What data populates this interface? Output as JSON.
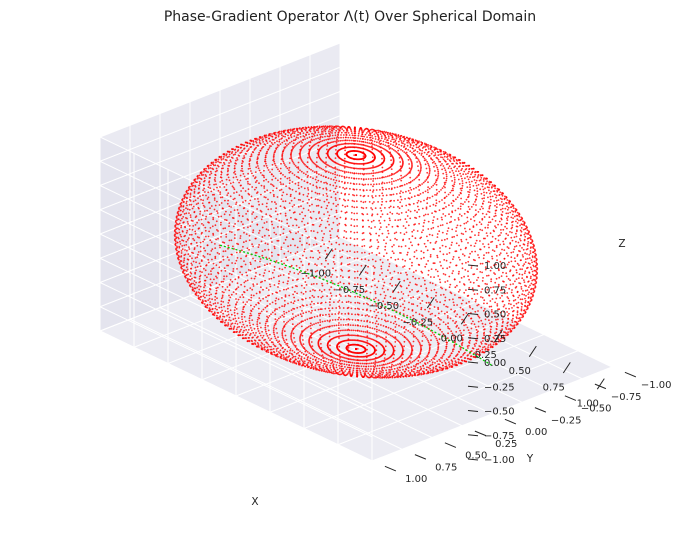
{
  "chart_data": {
    "type": "scatter3d",
    "title": "Phase-Gradient Operator Λ(t) Over Spherical Domain",
    "xlabel": "X",
    "ylabel": "Y",
    "zlabel": "Z",
    "xlim": [
      -1.0,
      1.0
    ],
    "ylim": [
      -1.0,
      1.0
    ],
    "zlim": [
      -1.0,
      1.0
    ],
    "x_ticks": [
      "−1.00",
      "−0.75",
      "−0.50",
      "−0.25",
      "0.00",
      "0.25",
      "0.50",
      "0.75",
      "1.00"
    ],
    "y_ticks": [
      "−1.00",
      "−0.75",
      "−0.50",
      "−0.25",
      "0.00",
      "0.25",
      "0.50",
      "0.75",
      "1.00"
    ],
    "z_ticks": [
      "−1.00",
      "−0.75",
      "−0.50",
      "−0.25",
      "0.00",
      "0.25",
      "0.50",
      "0.75",
      "1.00"
    ],
    "grid": true,
    "series": [
      {
        "kind": "sphere-surface-points",
        "color": "#ff0000",
        "radius": 1.0,
        "phi_samples": 60,
        "theta_samples": 120
      },
      {
        "kind": "curve",
        "color": "#00cc00",
        "linestyle": "dashed",
        "description_points": [
          [
            -1.0,
            0.0,
            -0.6
          ],
          [
            0.0,
            0.0,
            -0.3
          ],
          [
            1.0,
            0.0,
            -0.5
          ]
        ]
      }
    ],
    "colors": {
      "pane": "#eaeaf2",
      "grid": "#ffffff",
      "text": "#262626"
    }
  }
}
